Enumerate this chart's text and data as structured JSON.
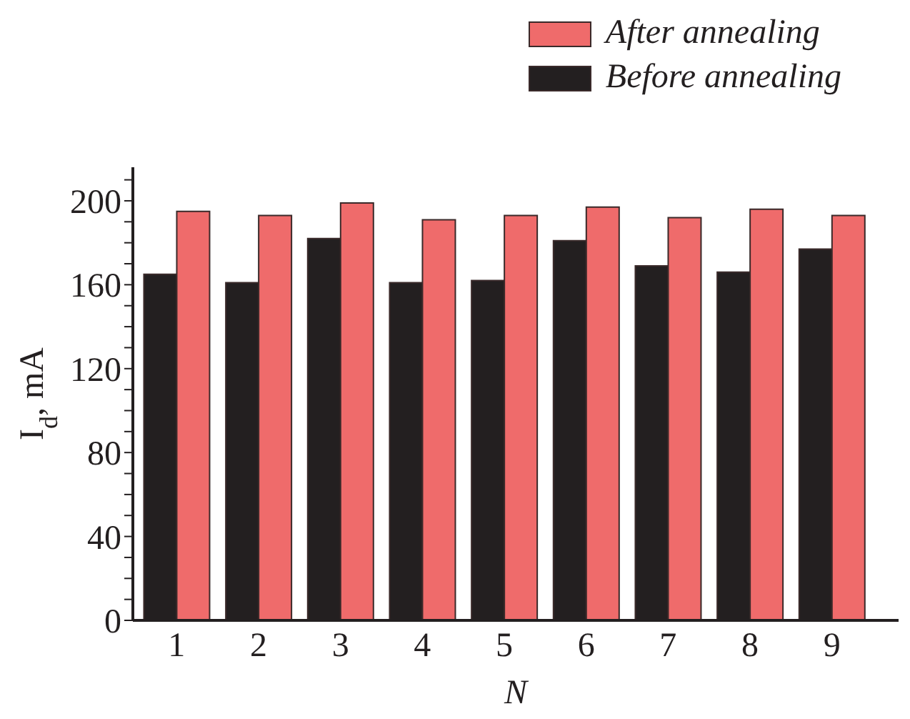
{
  "chart_data": {
    "type": "bar",
    "xlabel": "N",
    "ylabel": "I$_{d}$, mA",
    "categories": [
      "1",
      "2",
      "3",
      "4",
      "5",
      "6",
      "7",
      "8",
      "9"
    ],
    "series": [
      {
        "name": "Before annealing",
        "color": "#231f20",
        "values": [
          165,
          161,
          182,
          161,
          162,
          181,
          169,
          166,
          177
        ]
      },
      {
        "name": "After annealing",
        "color": "#ef6b6b",
        "values": [
          195,
          193,
          199,
          191,
          193,
          197,
          192,
          196,
          193
        ]
      }
    ],
    "ylim": [
      0,
      216
    ],
    "yticks": [
      0,
      {
        "value": 10,
        "label": null
      },
      40,
      {
        "value": 20,
        "label": null
      },
      {
        "value": 30,
        "label": null
      },
      {
        "value": 50,
        "label": null
      },
      {
        "value": 60,
        "label": null
      },
      {
        "value": 70,
        "label": null
      },
      80,
      {
        "value": 90,
        "label": null
      },
      {
        "value": 100,
        "label": null
      },
      {
        "value": 110,
        "label": null
      },
      120,
      {
        "value": 130,
        "label": null
      },
      {
        "value": 140,
        "label": null
      },
      {
        "value": 150,
        "label": null
      },
      160,
      {
        "value": 170,
        "label": null
      },
      {
        "value": 180,
        "label": null
      },
      {
        "value": 190,
        "label": null
      },
      200,
      {
        "value": 210,
        "label": null
      }
    ],
    "legend": "top right",
    "grid": false
  }
}
